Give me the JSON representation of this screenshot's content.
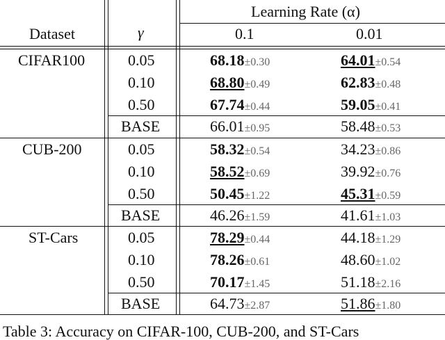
{
  "table": {
    "header": {
      "group_label": "Learning Rate (α)",
      "dataset_col": "Dataset",
      "gamma_col": "γ",
      "lr_cols": [
        "0.1",
        "0.01"
      ]
    },
    "groups": [
      {
        "dataset": "CIFAR100",
        "rows": [
          {
            "gamma": "0.05",
            "lr1": {
              "mean": "68.18",
              "std": "±0.30",
              "bold": true,
              "underline": false
            },
            "lr2": {
              "mean": "64.01",
              "std": "±0.54",
              "bold": true,
              "underline": true
            }
          },
          {
            "gamma": "0.10",
            "lr1": {
              "mean": "68.80",
              "std": "±0.49",
              "bold": true,
              "underline": true
            },
            "lr2": {
              "mean": "62.83",
              "std": "±0.48",
              "bold": true,
              "underline": false
            }
          },
          {
            "gamma": "0.50",
            "lr1": {
              "mean": "67.74",
              "std": "±0.44",
              "bold": true,
              "underline": false
            },
            "lr2": {
              "mean": "59.05",
              "std": "±0.41",
              "bold": true,
              "underline": false
            }
          },
          {
            "gamma": "BASE",
            "lr1": {
              "mean": "66.01",
              "std": "±0.95",
              "bold": false,
              "underline": false
            },
            "lr2": {
              "mean": "58.48",
              "std": "±0.53",
              "bold": false,
              "underline": false
            }
          }
        ]
      },
      {
        "dataset": "CUB-200",
        "rows": [
          {
            "gamma": "0.05",
            "lr1": {
              "mean": "58.32",
              "std": "±0.54",
              "bold": true,
              "underline": false
            },
            "lr2": {
              "mean": "34.23",
              "std": "±0.86",
              "bold": false,
              "underline": false
            }
          },
          {
            "gamma": "0.10",
            "lr1": {
              "mean": "58.52",
              "std": "±0.69",
              "bold": true,
              "underline": true
            },
            "lr2": {
              "mean": "39.92",
              "std": "±0.76",
              "bold": false,
              "underline": false
            }
          },
          {
            "gamma": "0.50",
            "lr1": {
              "mean": "50.45",
              "std": "±1.22",
              "bold": true,
              "underline": false
            },
            "lr2": {
              "mean": "45.31",
              "std": "±0.59",
              "bold": true,
              "underline": true
            }
          },
          {
            "gamma": "BASE",
            "lr1": {
              "mean": "46.26",
              "std": "±1.59",
              "bold": false,
              "underline": false
            },
            "lr2": {
              "mean": "41.61",
              "std": "±1.03",
              "bold": false,
              "underline": false
            }
          }
        ]
      },
      {
        "dataset": "ST-Cars",
        "rows": [
          {
            "gamma": "0.05",
            "lr1": {
              "mean": "78.29",
              "std": "±0.44",
              "bold": true,
              "underline": true
            },
            "lr2": {
              "mean": "44.18",
              "std": "±1.29",
              "bold": false,
              "underline": false
            }
          },
          {
            "gamma": "0.10",
            "lr1": {
              "mean": "78.26",
              "std": "±0.61",
              "bold": true,
              "underline": false
            },
            "lr2": {
              "mean": "48.60",
              "std": "±1.02",
              "bold": false,
              "underline": false
            }
          },
          {
            "gamma": "0.50",
            "lr1": {
              "mean": "70.17",
              "std": "±1.45",
              "bold": true,
              "underline": false
            },
            "lr2": {
              "mean": "51.18",
              "std": "±2.16",
              "bold": false,
              "underline": false
            }
          },
          {
            "gamma": "BASE",
            "lr1": {
              "mean": "64.73",
              "std": "±2.87",
              "bold": false,
              "underline": false
            },
            "lr2": {
              "mean": "51.86",
              "std": "±1.80",
              "bold": false,
              "underline": true
            }
          }
        ]
      }
    ]
  },
  "caption": "Table 3: Accuracy on CIFAR-100, CUB-200, and ST-Cars"
}
